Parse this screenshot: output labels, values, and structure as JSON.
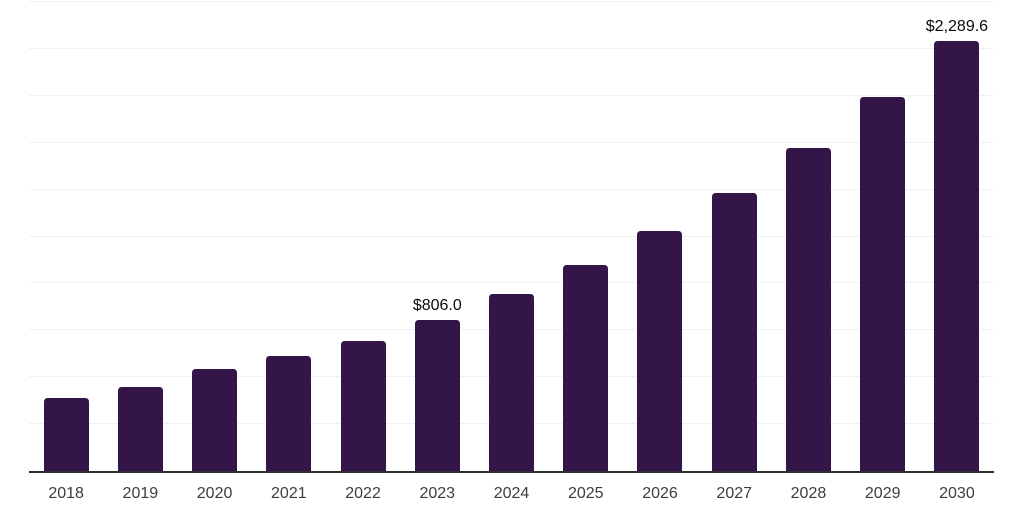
{
  "chart_data": {
    "type": "bar",
    "title": "",
    "xlabel": "",
    "ylabel": "",
    "categories": [
      "2018",
      "2019",
      "2020",
      "2021",
      "2022",
      "2023",
      "2024",
      "2025",
      "2026",
      "2027",
      "2028",
      "2029",
      "2030"
    ],
    "values": [
      390,
      448,
      544,
      613,
      693,
      806.0,
      943,
      1098,
      1279,
      1482,
      1722,
      1994,
      2289.6
    ],
    "data_labels": {
      "2023": "$806.0",
      "2030": "$2,289.6"
    },
    "ylim": [
      0,
      2500
    ],
    "gridline_step": 250,
    "grid": true,
    "legend": false
  },
  "style": {
    "bar_color": "#331549",
    "gridline_color": "#f0f0f0",
    "axis_color": "#2f2f2f",
    "tick_label_color": "#3d3d3d",
    "data_label_color": "#0a0a0a",
    "background": "#ffffff"
  }
}
